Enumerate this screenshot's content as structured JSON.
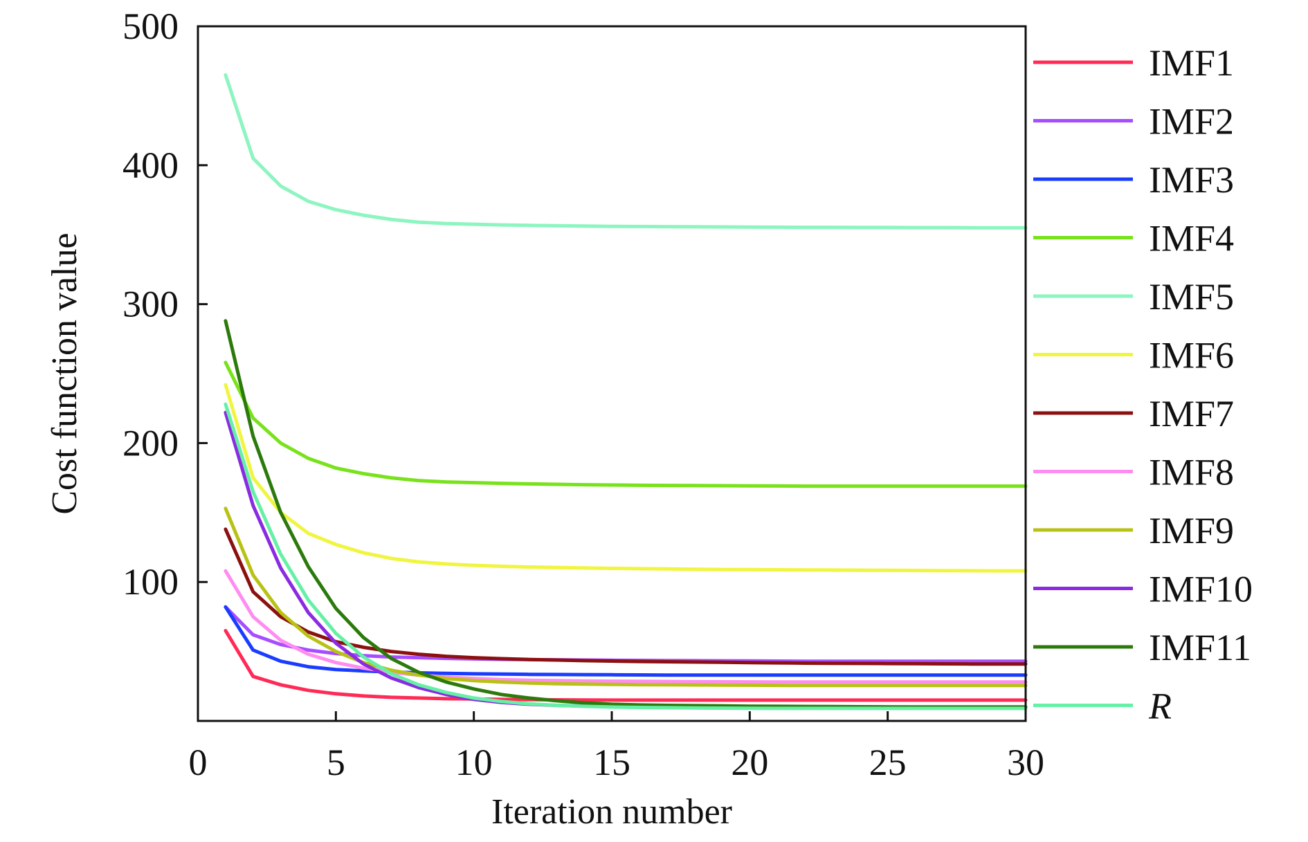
{
  "chart_data": {
    "type": "line",
    "xlabel": "Iteration number",
    "ylabel": "Cost function value",
    "xlim": [
      0,
      30
    ],
    "ylim": [
      0,
      500
    ],
    "xticks": [
      0,
      5,
      10,
      15,
      20,
      25,
      30
    ],
    "yticks": [
      100,
      200,
      300,
      400,
      500
    ],
    "grid": false,
    "legend_position": "right",
    "x": [
      1,
      2,
      3,
      4,
      5,
      6,
      7,
      8,
      9,
      10,
      11,
      12,
      13,
      14,
      15,
      16,
      17,
      18,
      19,
      20,
      21,
      22,
      23,
      24,
      25,
      26,
      27,
      28,
      29,
      30
    ],
    "series": [
      {
        "name": "IMF1",
        "color": "#ff2a55",
        "values": [
          65,
          32,
          26,
          22,
          19.5,
          18,
          17,
          16.5,
          16,
          15.8,
          15.5,
          15.3,
          15.2,
          15.1,
          15,
          15,
          15,
          15,
          15,
          15,
          15,
          15,
          15,
          15,
          15,
          15,
          15,
          15,
          15,
          15
        ]
      },
      {
        "name": "IMF2",
        "color": "#a64dff",
        "values": [
          82,
          62,
          55,
          51,
          48.5,
          47,
          46,
          45.5,
          45,
          44.6,
          44.3,
          44.1,
          44,
          43.8,
          43.7,
          43.6,
          43.5,
          43.4,
          43.3,
          43.2,
          43.1,
          43,
          43,
          43,
          43,
          43,
          43,
          43,
          43,
          43
        ]
      },
      {
        "name": "IMF3",
        "color": "#1a3cff",
        "values": [
          82,
          51,
          43,
          39,
          37,
          36,
          35.2,
          34.6,
          34.2,
          33.9,
          33.7,
          33.5,
          33.4,
          33.3,
          33.2,
          33.1,
          33,
          33,
          33,
          33,
          33,
          33,
          33,
          33,
          33,
          33,
          33,
          33,
          33,
          33
        ]
      },
      {
        "name": "IMF4",
        "color": "#78e21a",
        "values": [
          258,
          218,
          200,
          189,
          182,
          178,
          175,
          173,
          172,
          171.5,
          171,
          170.6,
          170.3,
          170,
          169.8,
          169.6,
          169.5,
          169.4,
          169.3,
          169.2,
          169.1,
          169,
          169,
          169,
          169,
          169,
          169,
          169,
          169,
          169
        ]
      },
      {
        "name": "IMF5",
        "color": "#8cf5c0",
        "values": [
          465,
          405,
          385,
          374,
          368,
          364,
          361,
          359,
          358,
          357.5,
          357,
          356.7,
          356.4,
          356.2,
          356,
          355.9,
          355.8,
          355.7,
          355.6,
          355.5,
          355.4,
          355.3,
          355.3,
          355.2,
          355.2,
          355.1,
          355.1,
          355,
          355,
          355
        ]
      },
      {
        "name": "IMF6",
        "color": "#f0f540",
        "values": [
          242,
          175,
          150,
          135,
          127,
          121,
          117,
          114.5,
          113,
          112,
          111.3,
          110.8,
          110.4,
          110.1,
          109.8,
          109.6,
          109.4,
          109.2,
          109,
          108.9,
          108.8,
          108.7,
          108.6,
          108.5,
          108.4,
          108.3,
          108.2,
          108.1,
          108,
          108
        ]
      },
      {
        "name": "IMF7",
        "color": "#8c1010",
        "values": [
          138,
          93,
          75,
          64,
          57,
          53,
          50,
          48,
          46.5,
          45.5,
          44.8,
          44.2,
          43.8,
          43.4,
          43.1,
          42.8,
          42.6,
          42.4,
          42.2,
          42,
          41.8,
          41.6,
          41.5,
          41.4,
          41.3,
          41.2,
          41.1,
          41,
          41,
          41
        ]
      },
      {
        "name": "IMF8",
        "color": "#ff8cf0",
        "values": [
          108,
          75,
          58,
          48,
          42,
          38,
          35,
          33,
          31.5,
          30.5,
          29.8,
          29.3,
          29,
          28.8,
          28.6,
          28.5,
          28.4,
          28.3,
          28.2,
          28.1,
          28,
          28,
          28,
          28,
          28,
          28,
          28,
          28,
          28,
          28
        ]
      },
      {
        "name": "IMF9",
        "color": "#b8c214",
        "values": [
          153,
          105,
          78,
          61,
          50,
          42,
          36.5,
          33,
          30.5,
          29,
          28,
          27.3,
          26.8,
          26.5,
          26.3,
          26.1,
          26,
          25.9,
          25.8,
          25.7,
          25.6,
          25.5,
          25.5,
          25.5,
          25.5,
          25.5,
          25.5,
          25.5,
          25.5,
          25.5
        ]
      },
      {
        "name": "IMF10",
        "color": "#8a2be2",
        "values": [
          222,
          155,
          110,
          78,
          56,
          41,
          31,
          24,
          19,
          15.5,
          13.3,
          12,
          11.2,
          10.7,
          10.4,
          10.2,
          10.1,
          10,
          10,
          10,
          10,
          10,
          10,
          10,
          10,
          10,
          10,
          10,
          10,
          10
        ]
      },
      {
        "name": "IMF11",
        "color": "#2b7a0b",
        "values": [
          288,
          205,
          150,
          111,
          81,
          60,
          45,
          35,
          28,
          23,
          19,
          16.5,
          14.5,
          13,
          12,
          11.5,
          11.2,
          11,
          10.8,
          10.6,
          10.5,
          10.4,
          10.3,
          10.2,
          10.1,
          10,
          10,
          10,
          10,
          10
        ]
      },
      {
        "name": "R",
        "color": "#66f0a6",
        "values": [
          228,
          165,
          120,
          87,
          63,
          46,
          34,
          26,
          20.5,
          16.5,
          14,
          12.3,
          11.2,
          10.5,
          10,
          9.7,
          9.5,
          9.3,
          9.2,
          9.1,
          9,
          9,
          9,
          9,
          9,
          9,
          9,
          9,
          9,
          9
        ]
      }
    ]
  }
}
